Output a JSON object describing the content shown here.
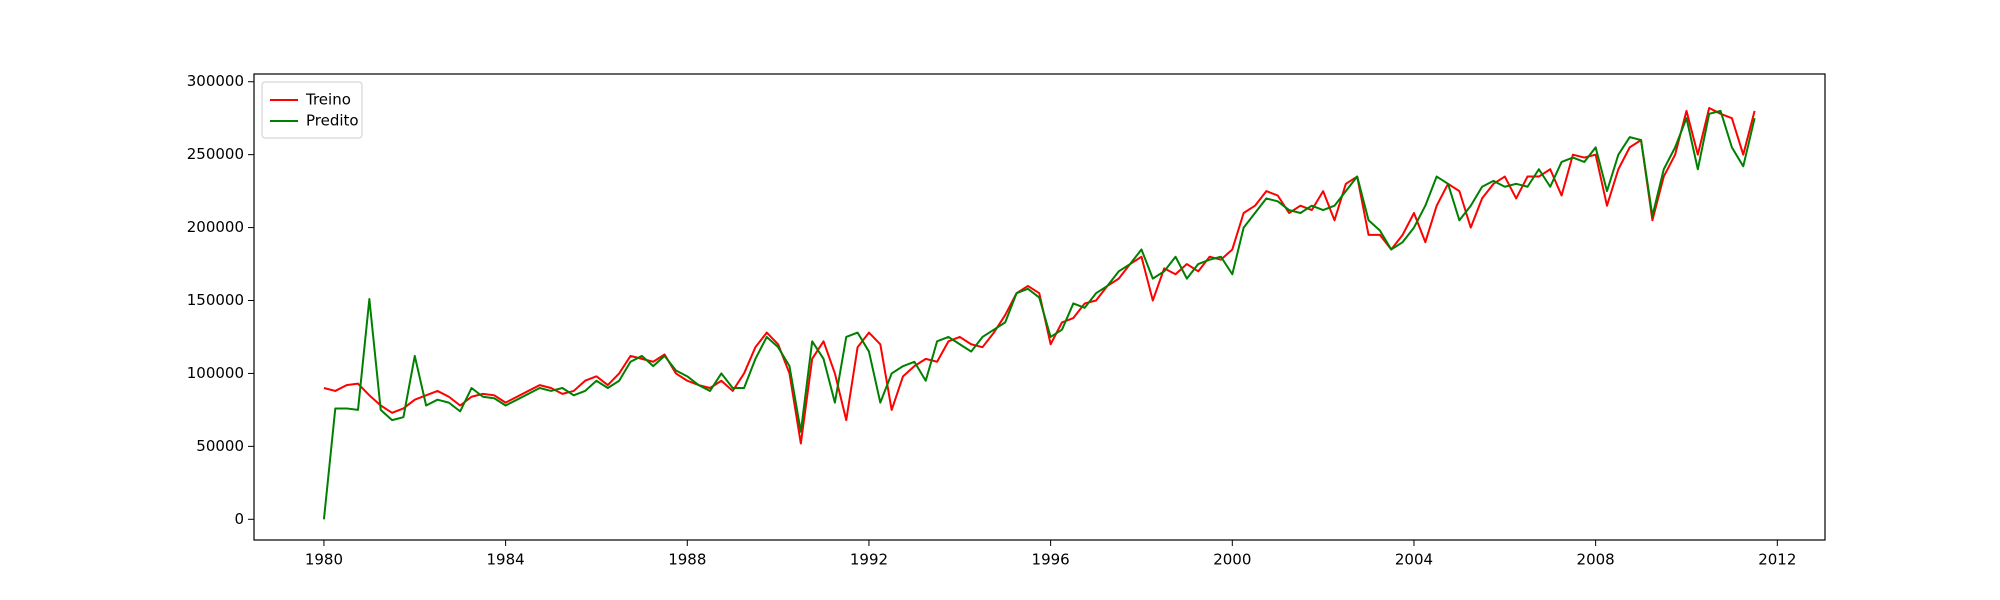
{
  "chart_data": {
    "type": "line",
    "x": [
      1980,
      1980.25,
      1980.5,
      1980.75,
      1981,
      1981.25,
      1981.5,
      1981.75,
      1982,
      1982.25,
      1982.5,
      1982.75,
      1983,
      1983.25,
      1983.5,
      1983.75,
      1984,
      1984.25,
      1984.5,
      1984.75,
      1985,
      1985.25,
      1985.5,
      1985.75,
      1986,
      1986.25,
      1986.5,
      1986.75,
      1987,
      1987.25,
      1987.5,
      1987.75,
      1988,
      1988.25,
      1988.5,
      1988.75,
      1989,
      1989.25,
      1989.5,
      1989.75,
      1990,
      1990.25,
      1990.5,
      1990.75,
      1991,
      1991.25,
      1991.5,
      1991.75,
      1992,
      1992.25,
      1992.5,
      1992.75,
      1993,
      1993.25,
      1993.5,
      1993.75,
      1994,
      1994.25,
      1994.5,
      1994.75,
      1995,
      1995.25,
      1995.5,
      1995.75,
      1996,
      1996.25,
      1996.5,
      1996.75,
      1997,
      1997.25,
      1997.5,
      1997.75,
      1998,
      1998.25,
      1998.5,
      1998.75,
      1999,
      1999.25,
      1999.5,
      1999.75,
      2000,
      2000.25,
      2000.5,
      2000.75,
      2001,
      2001.25,
      2001.5,
      2001.75,
      2002,
      2002.25,
      2002.5,
      2002.75,
      2003,
      2003.25,
      2003.5,
      2003.75,
      2004,
      2004.25,
      2004.5,
      2004.75,
      2005,
      2005.25,
      2005.5,
      2005.75,
      2006,
      2006.25,
      2006.5,
      2006.75,
      2007,
      2007.25,
      2007.5,
      2007.75,
      2008,
      2008.25,
      2008.5,
      2008.75,
      2009,
      2009.25,
      2009.5,
      2009.75,
      2010,
      2010.25,
      2010.5,
      2010.75,
      2011,
      2011.25,
      2011.5
    ],
    "series": [
      {
        "name": "Treino",
        "color": "#ff0000",
        "values": [
          90000,
          88000,
          92000,
          93000,
          85000,
          78000,
          73000,
          76000,
          82000,
          85000,
          88000,
          84000,
          78000,
          84000,
          86000,
          85000,
          80000,
          84000,
          88000,
          92000,
          90000,
          86000,
          88000,
          95000,
          98000,
          92000,
          100000,
          112000,
          110000,
          108000,
          113000,
          100000,
          95000,
          92000,
          90000,
          95000,
          88000,
          100000,
          118000,
          128000,
          120000,
          100000,
          52000,
          110000,
          122000,
          100000,
          68000,
          118000,
          128000,
          120000,
          75000,
          98000,
          105000,
          110000,
          108000,
          122000,
          125000,
          120000,
          118000,
          128000,
          140000,
          155000,
          160000,
          155000,
          120000,
          135000,
          138000,
          148000,
          150000,
          160000,
          165000,
          175000,
          180000,
          150000,
          172000,
          168000,
          175000,
          170000,
          180000,
          178000,
          185000,
          210000,
          215000,
          225000,
          222000,
          210000,
          215000,
          212000,
          225000,
          205000,
          230000,
          235000,
          195000,
          195000,
          185000,
          195000,
          210000,
          190000,
          215000,
          230000,
          225000,
          200000,
          220000,
          230000,
          235000,
          220000,
          235000,
          235000,
          240000,
          222000,
          250000,
          248000,
          250000,
          215000,
          240000,
          255000,
          260000,
          205000,
          235000,
          250000,
          280000,
          250000,
          282000,
          278000,
          275000,
          250000,
          280000
        ]
      },
      {
        "name": "Predito",
        "color": "#008000",
        "values": [
          0,
          76000,
          76000,
          75000,
          151000,
          75000,
          68000,
          70000,
          112000,
          78000,
          82000,
          80000,
          74000,
          90000,
          84000,
          83000,
          78000,
          82000,
          86000,
          90000,
          88000,
          90000,
          85000,
          88000,
          95000,
          90000,
          95000,
          108000,
          112000,
          105000,
          112000,
          102000,
          98000,
          92000,
          88000,
          100000,
          90000,
          90000,
          110000,
          125000,
          118000,
          105000,
          60000,
          122000,
          110000,
          80000,
          125000,
          128000,
          115000,
          80000,
          100000,
          105000,
          108000,
          95000,
          122000,
          125000,
          120000,
          115000,
          125000,
          130000,
          135000,
          155000,
          158000,
          152000,
          125000,
          130000,
          148000,
          145000,
          155000,
          160000,
          170000,
          175000,
          185000,
          165000,
          170000,
          180000,
          165000,
          175000,
          178000,
          180000,
          168000,
          200000,
          210000,
          220000,
          218000,
          212000,
          210000,
          215000,
          212000,
          215000,
          225000,
          235000,
          205000,
          198000,
          185000,
          190000,
          200000,
          215000,
          235000,
          230000,
          205000,
          215000,
          228000,
          232000,
          228000,
          230000,
          228000,
          240000,
          228000,
          245000,
          248000,
          245000,
          255000,
          225000,
          250000,
          262000,
          260000,
          208000,
          240000,
          255000,
          275000,
          240000,
          278000,
          280000,
          255000,
          242000,
          275000
        ]
      }
    ],
    "xlim": [
      1978.46,
      2013.05
    ],
    "xticks": [
      1980,
      1984,
      1988,
      1992,
      1996,
      2000,
      2004,
      2008,
      2012
    ],
    "ylim": [
      -14200,
      305300
    ],
    "yticks": [
      0,
      50000,
      100000,
      150000,
      200000,
      250000,
      300000
    ],
    "grid": false,
    "legend": "upper-left"
  }
}
